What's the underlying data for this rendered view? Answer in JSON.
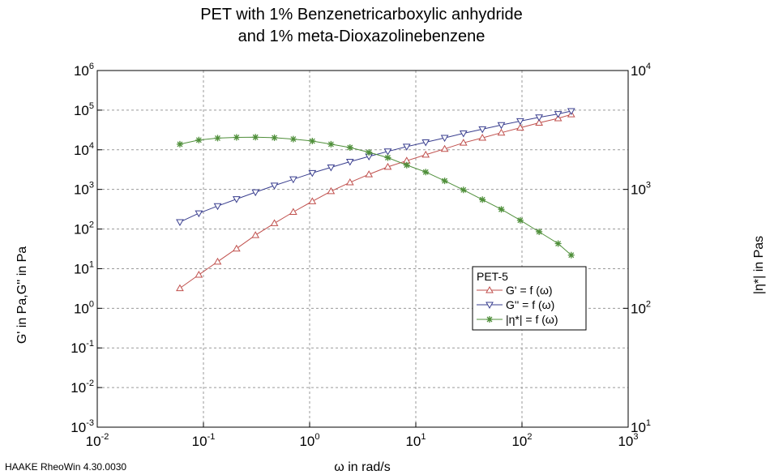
{
  "chart_data": {
    "type": "line",
    "title": [
      "PET with 1% Benzenetricarboxylic anhydride",
      "and 1% meta-Dioxazolinebenzene"
    ],
    "xlabel": "ω in rad/s",
    "ylabel_left": "G' in Pa,G'' in Pa",
    "ylabel_right": "|η*| in Pas",
    "x_scale": "log",
    "y_left_scale": "log",
    "y_right_scale": "log",
    "xlim": [
      0.01,
      1000
    ],
    "ylim_left": [
      0.001,
      1000000
    ],
    "ylim_right": [
      10,
      10000
    ],
    "x_ticks": [
      {
        "base": "10",
        "exp": "-2"
      },
      {
        "base": "10",
        "exp": "-1"
      },
      {
        "base": "10",
        "exp": "0"
      },
      {
        "base": "10",
        "exp": "1"
      },
      {
        "base": "10",
        "exp": "2"
      },
      {
        "base": "10",
        "exp": "3"
      }
    ],
    "y_left_ticks": [
      {
        "base": "10",
        "exp": "-3"
      },
      {
        "base": "10",
        "exp": "-2"
      },
      {
        "base": "10",
        "exp": "-1"
      },
      {
        "base": "10",
        "exp": "0"
      },
      {
        "base": "10",
        "exp": "1"
      },
      {
        "base": "10",
        "exp": "2"
      },
      {
        "base": "10",
        "exp": "3"
      },
      {
        "base": "10",
        "exp": "4"
      },
      {
        "base": "10",
        "exp": "5"
      },
      {
        "base": "10",
        "exp": "6"
      }
    ],
    "y_right_ticks": [
      {
        "base": "10",
        "exp": "1"
      },
      {
        "base": "10",
        "exp": "2"
      },
      {
        "base": "10",
        "exp": "3"
      },
      {
        "base": "10",
        "exp": "4"
      }
    ],
    "grid": true,
    "legend_title": "PET-5",
    "legend_position": "lower-right",
    "x": [
      0.06,
      0.0905,
      0.136,
      0.205,
      0.309,
      0.466,
      0.702,
      1.06,
      1.59,
      2.4,
      3.62,
      5.45,
      8.21,
      12.4,
      18.7,
      28.1,
      42.4,
      63.9,
      96.3,
      145,
      219,
      291
    ],
    "series": [
      {
        "name": "G' = f (ω)",
        "axis": "left",
        "color": "#c0504d",
        "marker": "triangle-up",
        "values": [
          3.2,
          7,
          15,
          32,
          70,
          140,
          270,
          500,
          900,
          1500,
          2400,
          3700,
          5300,
          7500,
          10500,
          15000,
          20000,
          27000,
          36000,
          48000,
          62000,
          78000
        ]
      },
      {
        "name": "G'' = f (ω)",
        "axis": "left",
        "color": "#3a3f8f",
        "marker": "triangle-down",
        "values": [
          150,
          250,
          380,
          570,
          850,
          1250,
          1800,
          2600,
          3600,
          5000,
          6800,
          9100,
          12000,
          15500,
          20000,
          26000,
          33000,
          42000,
          53000,
          66000,
          80000,
          95000
        ]
      },
      {
        "name": "|η*| = f (ω)",
        "axis": "right",
        "color": "#4f8f3a",
        "marker": "asterisk",
        "values": [
          2400,
          2600,
          2700,
          2740,
          2750,
          2720,
          2650,
          2550,
          2400,
          2250,
          2050,
          1850,
          1600,
          1400,
          1180,
          990,
          820,
          680,
          550,
          440,
          350,
          280
        ]
      }
    ]
  },
  "footer": "HAAKE RheoWin 4.30.0030"
}
